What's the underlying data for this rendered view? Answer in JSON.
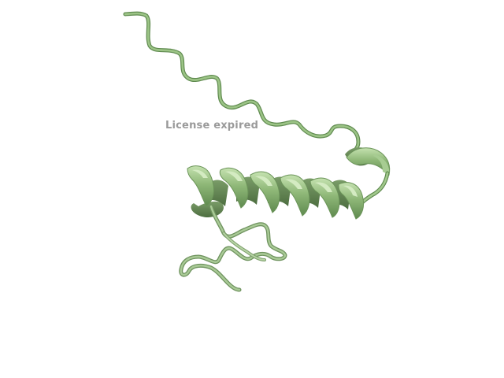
{
  "viewer": {
    "background_color": "#ffffff",
    "structure_color": "#8fb878",
    "structure_shadow_color": "#5f8a4f",
    "structure_highlight_color": "#c5e2b0",
    "representation": "cartoon",
    "watermark_text": "License expired",
    "watermark_color": "#9a9a9a"
  }
}
